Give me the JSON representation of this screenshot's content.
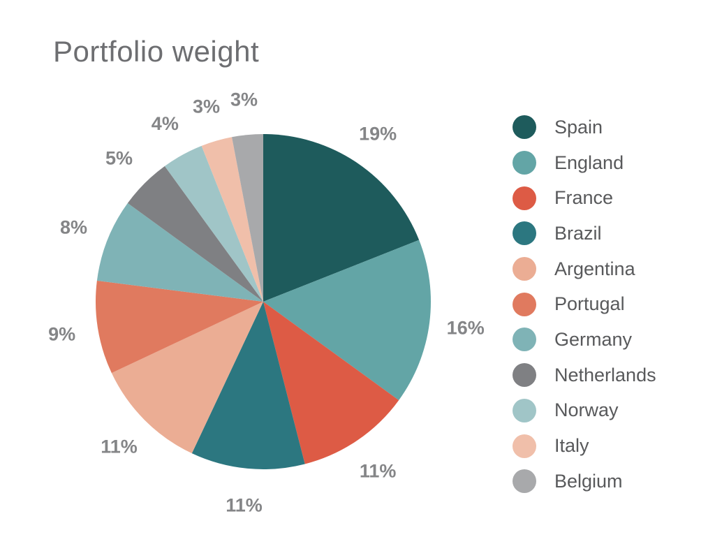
{
  "title": "Portfolio weight",
  "chart_data": {
    "type": "pie",
    "title": "Portfolio weight",
    "categories": [
      "Spain",
      "England",
      "France",
      "Brazil",
      "Argentina",
      "Portugal",
      "Germany",
      "Netherlands",
      "Norway",
      "Italy",
      "Belgium"
    ],
    "values": [
      19,
      16,
      11,
      11,
      11,
      9,
      8,
      5,
      4,
      3,
      3
    ],
    "labels": [
      "19%",
      "16%",
      "11%",
      "11%",
      "11%",
      "9%",
      "8%",
      "5%",
      "4%",
      "3%",
      "3%"
    ],
    "colors": [
      "#1e5b5c",
      "#63a5a6",
      "#dd5b45",
      "#2c7780",
      "#ebad94",
      "#e07a5f",
      "#7fb3b6",
      "#7f8083",
      "#a0c5c7",
      "#f0bfaa",
      "#a8a9ab"
    ],
    "legend_position": "right",
    "start_angle_deg": 0,
    "direction": "clockwise"
  },
  "legend": [
    {
      "label": "Spain",
      "color": "#1e5b5c"
    },
    {
      "label": "England",
      "color": "#63a5a6"
    },
    {
      "label": "France",
      "color": "#dd5b45"
    },
    {
      "label": "Brazil",
      "color": "#2c7780"
    },
    {
      "label": "Argentina",
      "color": "#ebad94"
    },
    {
      "label": "Portugal",
      "color": "#e07a5f"
    },
    {
      "label": "Germany",
      "color": "#7fb3b6"
    },
    {
      "label": "Netherlands",
      "color": "#7f8083"
    },
    {
      "label": "Norway",
      "color": "#a0c5c7"
    },
    {
      "label": "Italy",
      "color": "#f0bfaa"
    },
    {
      "label": "Belgium",
      "color": "#a8a9ab"
    }
  ]
}
